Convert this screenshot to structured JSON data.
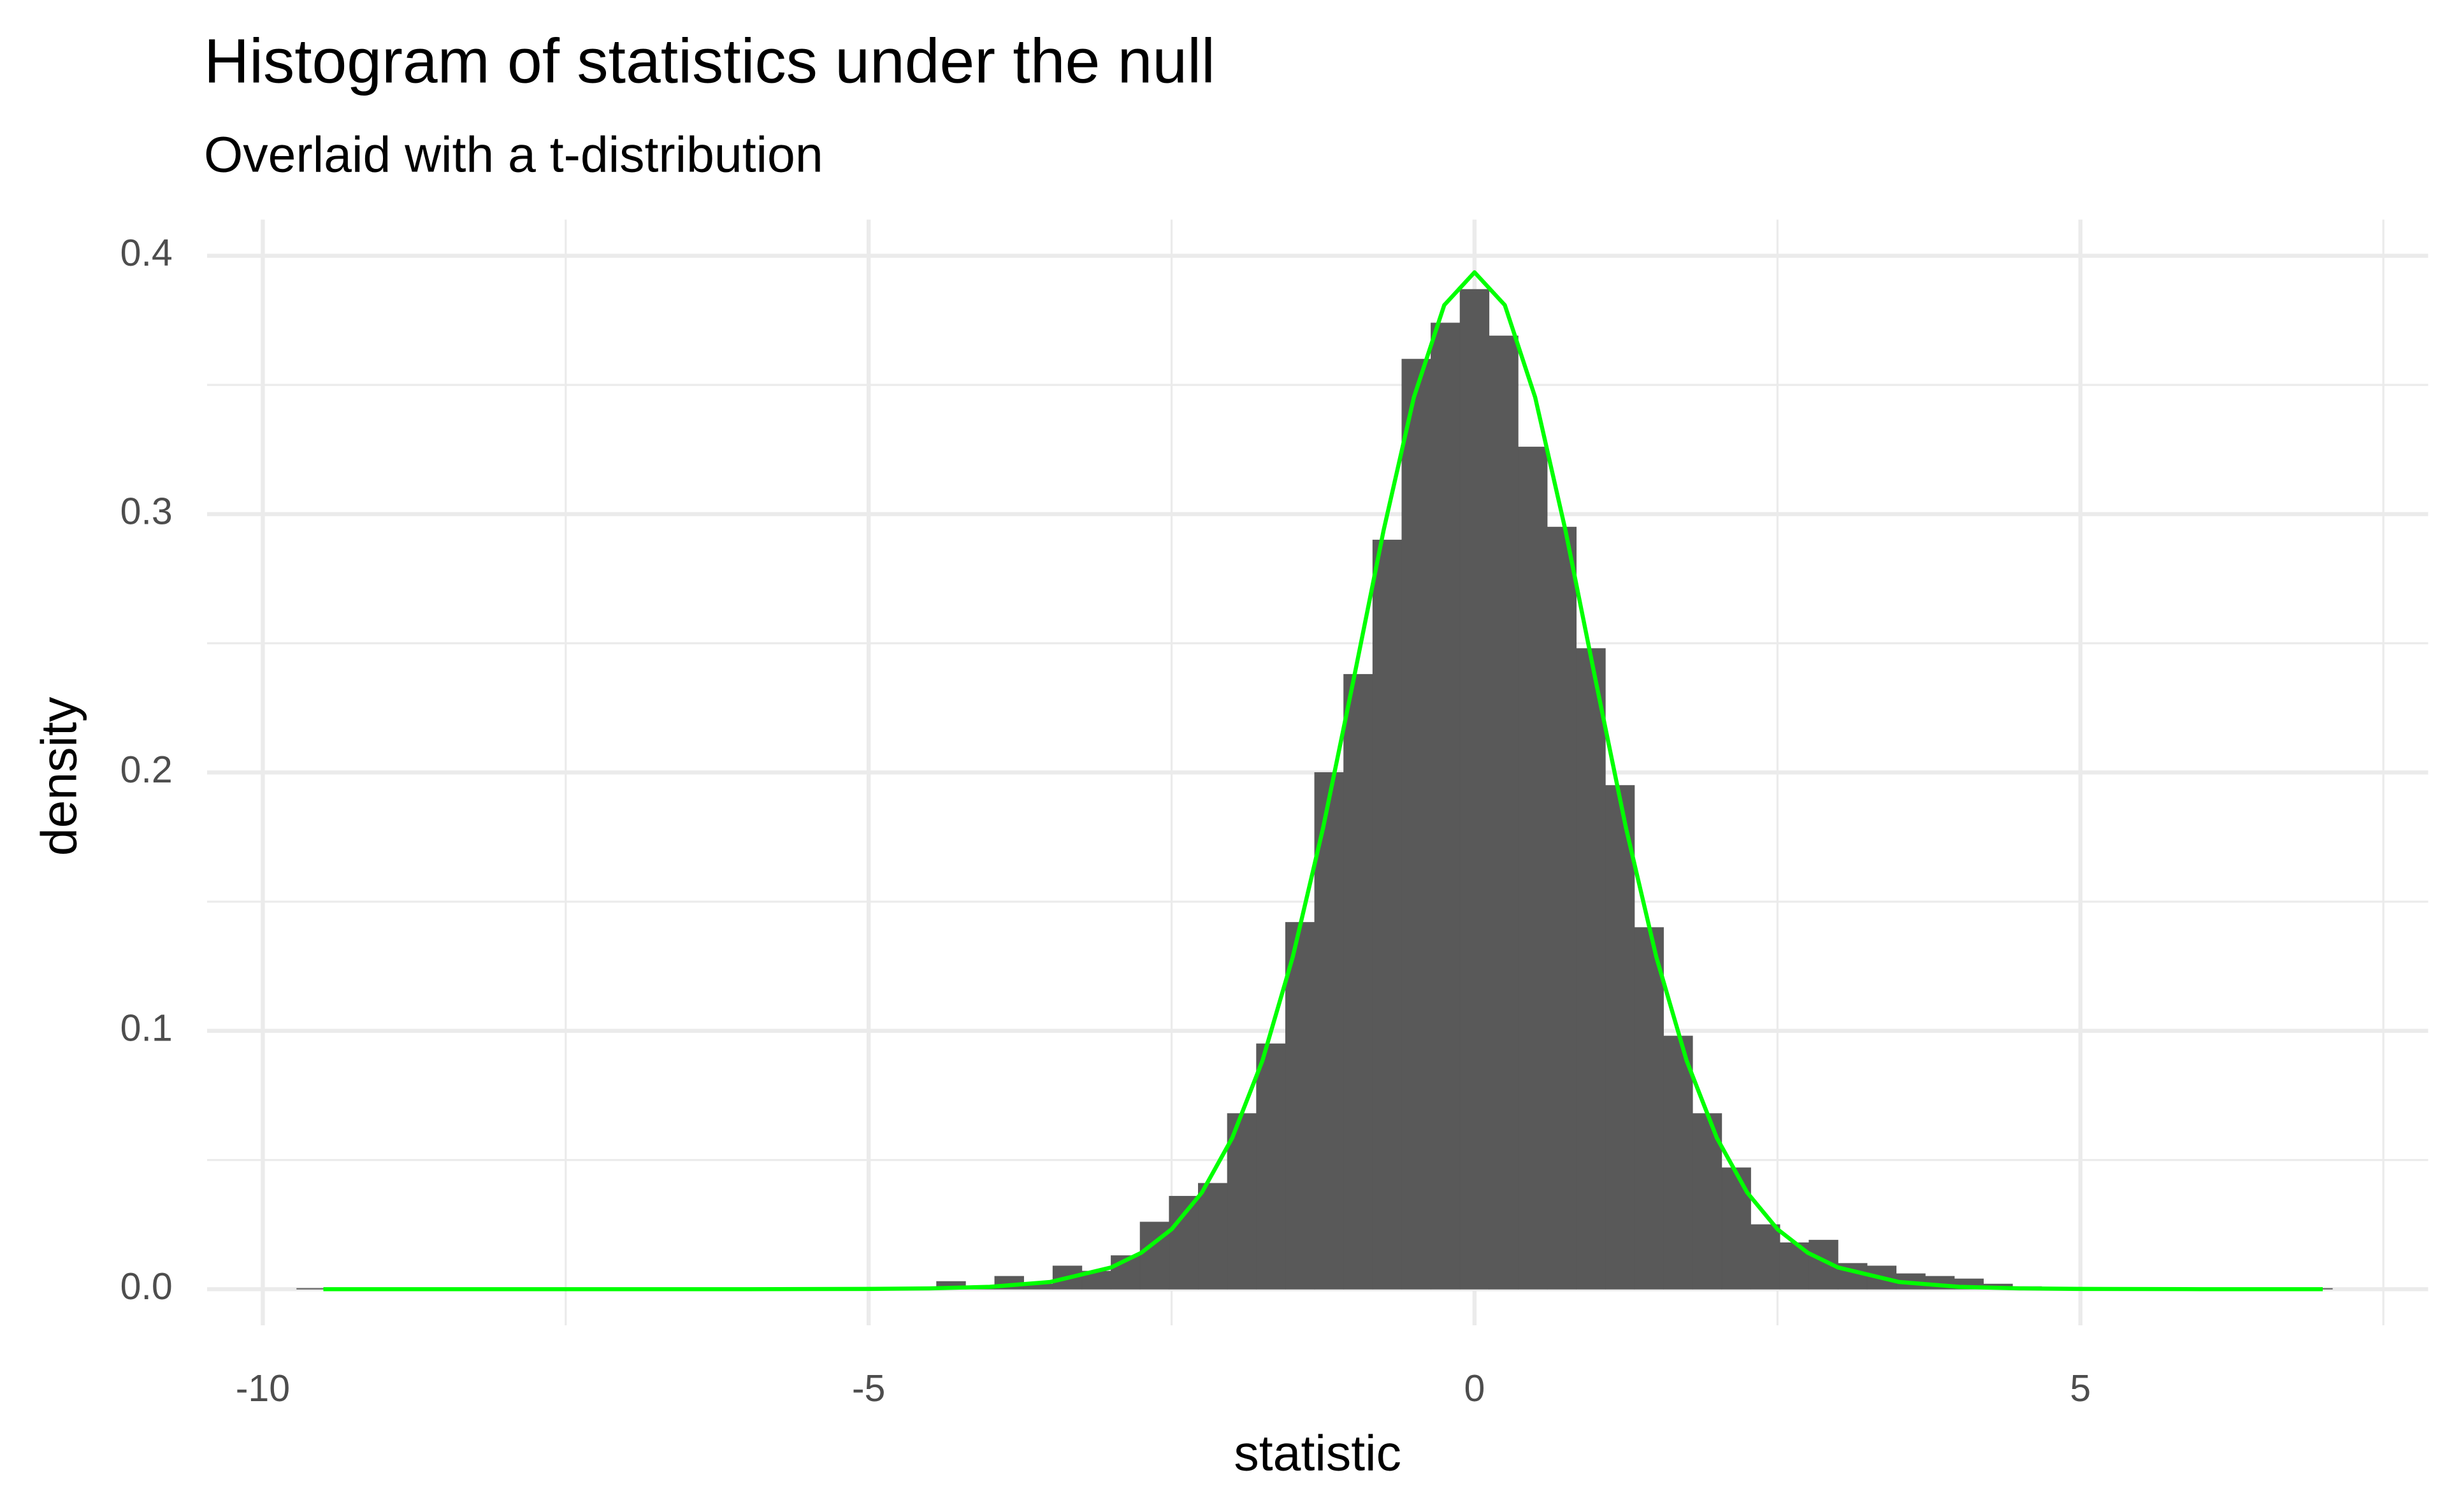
{
  "chart_data": {
    "type": "histogram",
    "title": "Histogram of statistics under the null",
    "subtitle": "Overlaid with a t-distribution",
    "x_label": "statistic",
    "y_label": "density",
    "color": "#595959",
    "bins": [
      -9.72,
      -9.48,
      -9.24,
      -9.0,
      -8.76,
      -8.52,
      -8.28,
      -8.04,
      -7.8,
      -7.56,
      -7.32,
      -7.08,
      -6.84,
      -6.6,
      -6.36,
      -6.12,
      -5.88,
      -5.64,
      -5.4,
      -5.16,
      -4.92,
      -4.68,
      -4.44,
      -4.2,
      -3.96,
      -3.72,
      -3.48,
      -3.24,
      -3.0,
      -2.76,
      -2.52,
      -2.28,
      -2.04,
      -1.8,
      -1.56,
      -1.32,
      -1.08,
      -0.84,
      -0.6,
      -0.36,
      -0.12,
      0.12,
      0.36,
      0.6,
      0.84,
      1.08,
      1.32,
      1.56,
      1.8,
      2.04,
      2.28,
      2.52,
      2.76,
      3.0,
      3.24,
      3.48,
      3.72,
      3.96,
      4.2,
      4.44,
      4.68,
      4.92,
      5.16,
      5.4,
      5.64,
      5.88,
      6.12,
      6.36,
      6.6,
      6.84,
      7.08
    ],
    "values": [
      0.0003,
      0,
      0,
      0,
      0,
      0,
      0,
      0,
      0,
      0,
      0,
      0,
      0,
      0,
      0,
      0,
      0,
      0,
      0,
      0,
      0,
      0,
      0.003,
      0.001,
      0.005,
      0.002,
      0.009,
      0.007,
      0.013,
      0.026,
      0.036,
      0.041,
      0.068,
      0.095,
      0.142,
      0.2,
      0.238,
      0.29,
      0.36,
      0.374,
      0.387,
      0.369,
      0.326,
      0.295,
      0.248,
      0.195,
      0.14,
      0.098,
      0.068,
      0.047,
      0.025,
      0.018,
      0.019,
      0.01,
      0.009,
      0.006,
      0.005,
      0.004,
      0.002,
      0.001,
      0.0005,
      0,
      0,
      0,
      0,
      0,
      0,
      0,
      0,
      0.0003
    ],
    "overlay": {
      "type": "line",
      "color": "#00ff00",
      "x": [
        -9.5,
        -8,
        -7,
        -6,
        -5,
        -4.5,
        -4,
        -3.5,
        -3,
        -2.75,
        -2.5,
        -2.25,
        -2,
        -1.75,
        -1.5,
        -1.25,
        -1,
        -0.75,
        -0.5,
        -0.25,
        0,
        0.25,
        0.5,
        0.75,
        1,
        1.25,
        1.5,
        1.75,
        2,
        2.25,
        2.5,
        2.75,
        3,
        3.5,
        4,
        4.5,
        5,
        6,
        7
      ],
      "values": [
        0,
        0,
        0,
        0,
        0.0001,
        0.0003,
        0.0009,
        0.0028,
        0.0084,
        0.0141,
        0.0232,
        0.0374,
        0.0585,
        0.0885,
        0.1286,
        0.1785,
        0.2355,
        0.2938,
        0.3453,
        0.3809,
        0.3936,
        0.3809,
        0.3453,
        0.2938,
        0.2355,
        0.1785,
        0.1286,
        0.0885,
        0.0585,
        0.0374,
        0.0232,
        0.0141,
        0.0084,
        0.0028,
        0.0009,
        0.0003,
        0.0001,
        0,
        0
      ]
    },
    "xlim": [
      -10.46,
      7.87
    ],
    "ylim": [
      -0.014,
      0.414
    ],
    "xticks": [
      -10,
      -5,
      0,
      5
    ],
    "yticks": [
      {
        "value": 0,
        "label": "0.0"
      },
      0.1,
      0.2,
      0.3,
      0.4
    ],
    "x_minor_grid": [
      -7.5,
      -2.5,
      2.5,
      7.5
    ],
    "y_minor_grid": [
      0.05,
      0.15,
      0.25,
      0.35
    ],
    "grid": true
  }
}
